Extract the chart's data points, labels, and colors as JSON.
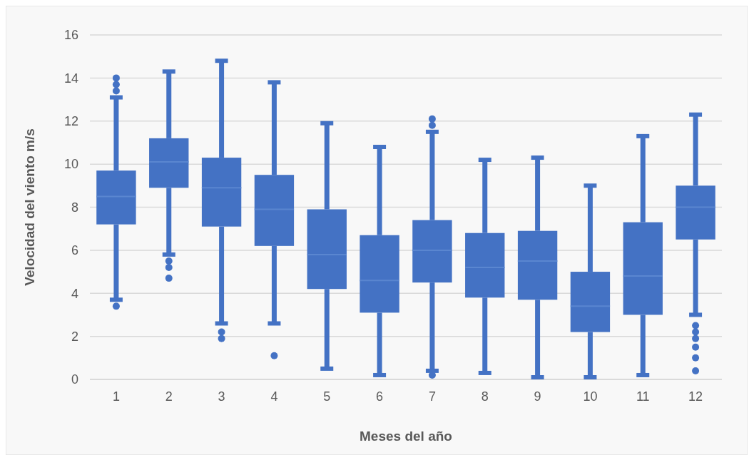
{
  "chart_data": {
    "type": "box",
    "xlabel": "Meses del año",
    "ylabel": "Velocidad del viento m/s",
    "categories": [
      "1",
      "2",
      "3",
      "4",
      "5",
      "6",
      "7",
      "8",
      "9",
      "10",
      "11",
      "12"
    ],
    "color": "#4472c4",
    "boxes": [
      {
        "low": 3.7,
        "q1": 7.2,
        "median": 8.5,
        "q3": 9.7,
        "high": 13.1,
        "outliers": [
          13.4,
          13.7,
          14.0,
          3.4
        ]
      },
      {
        "low": 5.8,
        "q1": 8.9,
        "median": 10.1,
        "q3": 11.2,
        "high": 14.3,
        "outliers": [
          5.5,
          5.2,
          4.7
        ]
      },
      {
        "low": 2.6,
        "q1": 7.1,
        "median": 8.9,
        "q3": 10.3,
        "high": 14.8,
        "outliers": [
          2.2,
          1.9
        ]
      },
      {
        "low": 2.6,
        "q1": 6.2,
        "median": 7.9,
        "q3": 9.5,
        "high": 13.8,
        "outliers": [
          1.1
        ]
      },
      {
        "low": 0.5,
        "q1": 4.2,
        "median": 5.8,
        "q3": 7.9,
        "high": 11.9
      },
      {
        "low": 0.2,
        "q1": 3.1,
        "median": 4.6,
        "q3": 6.7,
        "high": 10.8
      },
      {
        "low": 0.4,
        "q1": 4.5,
        "median": 6.0,
        "q3": 7.4,
        "high": 11.5,
        "outliers": [
          11.8,
          12.1,
          0.2
        ]
      },
      {
        "low": 0.3,
        "q1": 3.8,
        "median": 5.2,
        "q3": 6.8,
        "high": 10.2
      },
      {
        "low": 0.1,
        "q1": 3.7,
        "median": 5.5,
        "q3": 6.9,
        "high": 10.3
      },
      {
        "low": 0.1,
        "q1": 2.2,
        "median": 3.4,
        "q3": 5.0,
        "high": 9.0
      },
      {
        "low": 0.2,
        "q1": 3.0,
        "median": 4.8,
        "q3": 7.3,
        "high": 11.3
      },
      {
        "low": 3.0,
        "q1": 6.5,
        "median": 8.0,
        "q3": 9.0,
        "high": 12.3,
        "outliers": [
          2.5,
          2.2,
          1.9,
          1.5,
          1.0,
          0.4
        ]
      }
    ],
    "ylim": [
      0,
      16
    ],
    "yticks": [
      0,
      2,
      4,
      6,
      8,
      10,
      12,
      14,
      16
    ],
    "grid": "y"
  }
}
